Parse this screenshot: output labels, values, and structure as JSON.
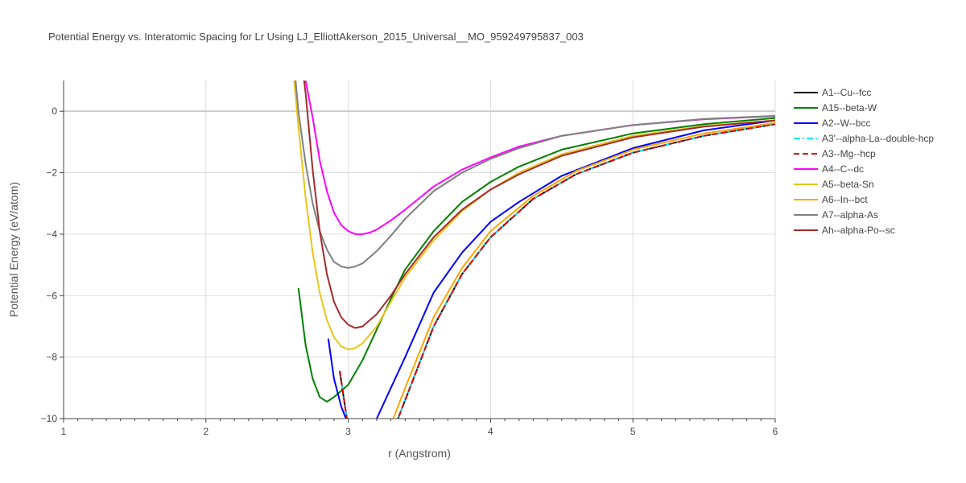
{
  "chart_data": {
    "type": "line",
    "title": "Potential Energy vs. Interatomic Spacing for Lr Using LJ_ElliottAkerson_2015_Universal__MO_959249795837_003",
    "xlabel": "r (Angstrom)",
    "ylabel": "Potential Energy (eV/atom)",
    "xlim": [
      1,
      6
    ],
    "ylim": [
      -10,
      1
    ],
    "x_ticks": [
      1,
      2,
      3,
      4,
      5,
      6
    ],
    "y_ticks": [
      0,
      -2,
      -4,
      -6,
      -8,
      -10
    ],
    "grid": true,
    "legend_position": "right",
    "series": [
      {
        "name": "A1--Cu--fcc",
        "color": "#000000",
        "dash": "solid",
        "x": [
          2.94,
          3.0,
          3.1,
          3.2,
          3.3,
          3.4,
          3.6,
          3.8,
          4.0,
          4.3,
          4.6,
          5.0,
          5.5,
          6.0
        ],
        "y": [
          -8.45,
          -10.3,
          -11.8,
          -11.6,
          -10.6,
          -9.4,
          -7.0,
          -5.3,
          -4.1,
          -2.85,
          -2.05,
          -1.35,
          -0.8,
          -0.42
        ]
      },
      {
        "name": "A15--beta-W",
        "color": "#008000",
        "dash": "solid",
        "x": [
          2.65,
          2.7,
          2.75,
          2.8,
          2.85,
          2.9,
          3.0,
          3.1,
          3.2,
          3.3,
          3.4,
          3.6,
          3.8,
          4.0,
          4.2,
          4.5,
          5.0,
          5.5,
          6.0
        ],
        "y": [
          -5.75,
          -7.6,
          -8.7,
          -9.3,
          -9.45,
          -9.3,
          -8.9,
          -8.1,
          -7.1,
          -6.1,
          -5.15,
          -3.9,
          -2.95,
          -2.3,
          -1.8,
          -1.25,
          -0.72,
          -0.42,
          -0.22
        ]
      },
      {
        "name": "A2--W--bcc",
        "color": "#0000ff",
        "dash": "solid",
        "x": [
          2.86,
          2.9,
          2.95,
          3.0,
          3.05,
          3.1,
          3.2,
          3.3,
          3.4,
          3.6,
          3.8,
          4.0,
          4.2,
          4.5,
          5.0,
          5.5,
          6.0
        ],
        "y": [
          -7.4,
          -8.7,
          -9.6,
          -10.2,
          -10.5,
          -10.5,
          -10.0,
          -9.0,
          -8.0,
          -5.9,
          -4.6,
          -3.6,
          -2.95,
          -2.1,
          -1.2,
          -0.62,
          -0.3
        ]
      },
      {
        "name": "A3'--alpha-La--double-hcp",
        "color": "#00e5ee",
        "dash": "dashdot",
        "x": [
          2.94,
          3.0,
          3.1,
          3.2,
          3.3,
          3.4,
          3.6,
          3.8,
          4.0,
          4.3,
          4.6,
          5.0,
          5.5,
          6.0
        ],
        "y": [
          -8.45,
          -10.3,
          -11.8,
          -11.6,
          -10.6,
          -9.4,
          -7.0,
          -5.3,
          -4.1,
          -2.85,
          -2.05,
          -1.35,
          -0.8,
          -0.42
        ]
      },
      {
        "name": "A3--Mg--hcp",
        "color": "#e00000",
        "dash": "dash",
        "x": [
          2.94,
          3.0,
          3.1,
          3.2,
          3.3,
          3.4,
          3.6,
          3.8,
          4.0,
          4.3,
          4.6,
          5.0,
          5.5,
          6.0
        ],
        "y": [
          -8.45,
          -10.3,
          -11.8,
          -11.6,
          -10.6,
          -9.4,
          -7.0,
          -5.3,
          -4.1,
          -2.85,
          -2.05,
          -1.35,
          -0.8,
          -0.42
        ]
      },
      {
        "name": "A4--C--dc",
        "color": "#ff00ff",
        "dash": "solid",
        "x": [
          2.7,
          2.75,
          2.8,
          2.85,
          2.9,
          2.95,
          3.0,
          3.05,
          3.1,
          3.15,
          3.2,
          3.3,
          3.4,
          3.6,
          3.8,
          4.0,
          4.2,
          4.5,
          5.0,
          5.5,
          6.0
        ],
        "y": [
          1.0,
          -0.2,
          -1.6,
          -2.6,
          -3.3,
          -3.7,
          -3.9,
          -4.0,
          -4.0,
          -3.95,
          -3.85,
          -3.55,
          -3.2,
          -2.45,
          -1.9,
          -1.5,
          -1.15,
          -0.8,
          -0.45,
          -0.26,
          -0.16
        ]
      },
      {
        "name": "A5--beta-Sn",
        "color": "#e6c619",
        "dash": "solid",
        "x": [
          2.62,
          2.65,
          2.7,
          2.75,
          2.8,
          2.85,
          2.9,
          2.95,
          3.0,
          3.05,
          3.1,
          3.2,
          3.3,
          3.4,
          3.6,
          3.8,
          4.0,
          4.2,
          4.5,
          5.0,
          5.5,
          6.0
        ],
        "y": [
          1.0,
          -0.5,
          -2.8,
          -4.6,
          -5.9,
          -6.8,
          -7.35,
          -7.65,
          -7.75,
          -7.7,
          -7.55,
          -7.0,
          -6.2,
          -5.4,
          -4.2,
          -3.25,
          -2.55,
          -2.0,
          -1.4,
          -0.8,
          -0.48,
          -0.3
        ]
      },
      {
        "name": "A6--In--bct",
        "color": "#ffa500",
        "dash": "solid",
        "x": [
          3.0,
          3.05,
          3.1,
          3.2,
          3.3,
          3.4,
          3.6,
          3.8,
          4.0,
          4.3,
          4.6,
          5.0,
          5.5,
          6.0
        ],
        "y": [
          -10.3,
          -11.0,
          -11.2,
          -11.0,
          -10.2,
          -9.0,
          -6.7,
          -5.1,
          -3.9,
          -2.75,
          -1.95,
          -1.25,
          -0.72,
          -0.38
        ]
      },
      {
        "name": "A7--alpha-As",
        "color": "#808080",
        "dash": "solid",
        "x": [
          2.63,
          2.65,
          2.7,
          2.75,
          2.8,
          2.85,
          2.9,
          2.95,
          3.0,
          3.05,
          3.1,
          3.2,
          3.3,
          3.4,
          3.6,
          3.8,
          4.0,
          4.2,
          4.5,
          5.0,
          5.5,
          6.0
        ],
        "y": [
          1.0,
          0.0,
          -1.7,
          -3.0,
          -3.9,
          -4.5,
          -4.9,
          -5.05,
          -5.1,
          -5.05,
          -4.95,
          -4.55,
          -4.05,
          -3.5,
          -2.6,
          -2.0,
          -1.55,
          -1.2,
          -0.8,
          -0.45,
          -0.25,
          -0.15
        ]
      },
      {
        "name": "Ah--alpha-Po--sc",
        "color": "#a52a2a",
        "dash": "solid",
        "x": [
          2.69,
          2.7,
          2.75,
          2.8,
          2.85,
          2.9,
          2.95,
          3.0,
          3.05,
          3.1,
          3.2,
          3.3,
          3.4,
          3.6,
          3.8,
          4.0,
          4.2,
          4.5,
          5.0,
          5.5,
          6.0
        ],
        "y": [
          1.0,
          0.6,
          -1.9,
          -3.9,
          -5.3,
          -6.2,
          -6.7,
          -6.95,
          -7.05,
          -7.0,
          -6.6,
          -6.0,
          -5.3,
          -4.1,
          -3.2,
          -2.55,
          -2.05,
          -1.45,
          -0.85,
          -0.5,
          -0.3
        ]
      }
    ]
  }
}
